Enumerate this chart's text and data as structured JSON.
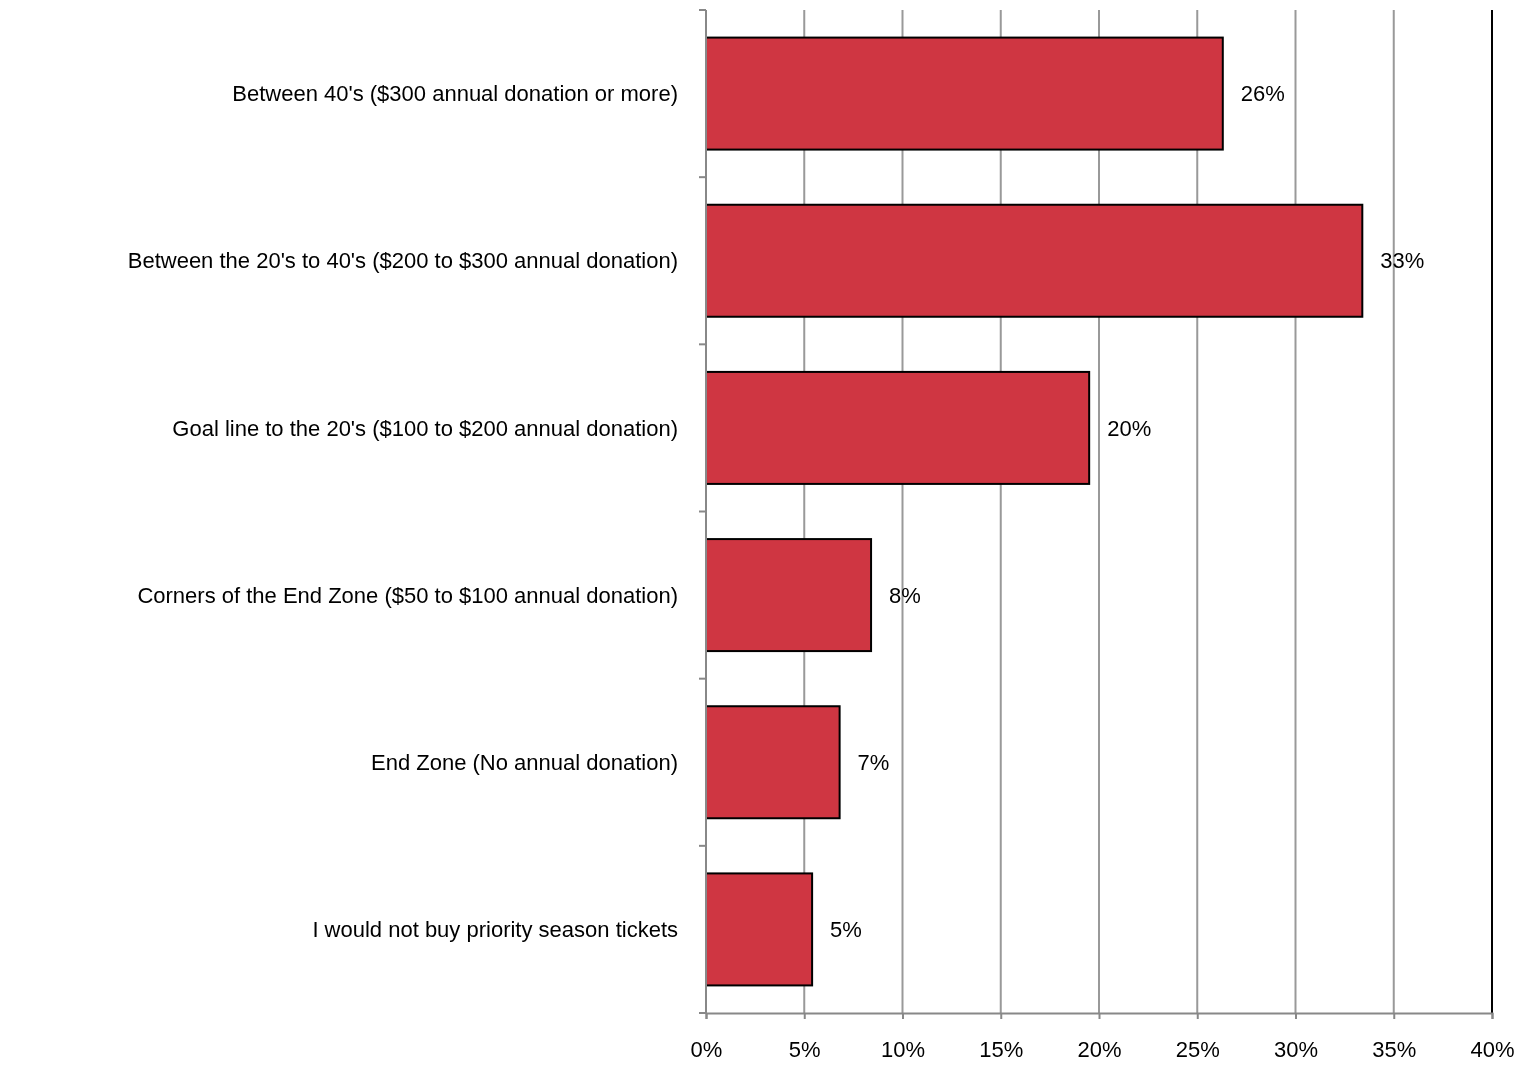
{
  "chart_data": {
    "type": "bar",
    "orientation": "horizontal",
    "categories": [
      "Between 40's ($300 annual donation or more)",
      "Between the 20's to 40's ($200 to $300 annual donation)",
      "Goal line to the 20's ($100 to $200 annual donation)",
      "Corners of the End Zone ($50 to $100 annual donation)",
      "End Zone (No annual donation)",
      "I would not buy priority season tickets"
    ],
    "values": [
      26.3,
      33.4,
      19.5,
      8.4,
      6.8,
      5.4
    ],
    "value_labels": [
      "26%",
      "33%",
      "20%",
      "8%",
      "7%",
      "5%"
    ],
    "color": "#cf3642",
    "xlim": [
      0,
      40
    ],
    "xticks": [
      {
        "value": 0,
        "label": "0%"
      },
      {
        "value": 5,
        "label": "5%"
      },
      {
        "value": 10,
        "label": "10%"
      },
      {
        "value": 15,
        "label": "15%"
      },
      {
        "value": 20,
        "label": "20%"
      },
      {
        "value": 25,
        "label": "25%"
      },
      {
        "value": 30,
        "label": "30%"
      },
      {
        "value": 35,
        "label": "35%"
      },
      {
        "value": 40,
        "label": "40%"
      }
    ],
    "grid": "x"
  }
}
